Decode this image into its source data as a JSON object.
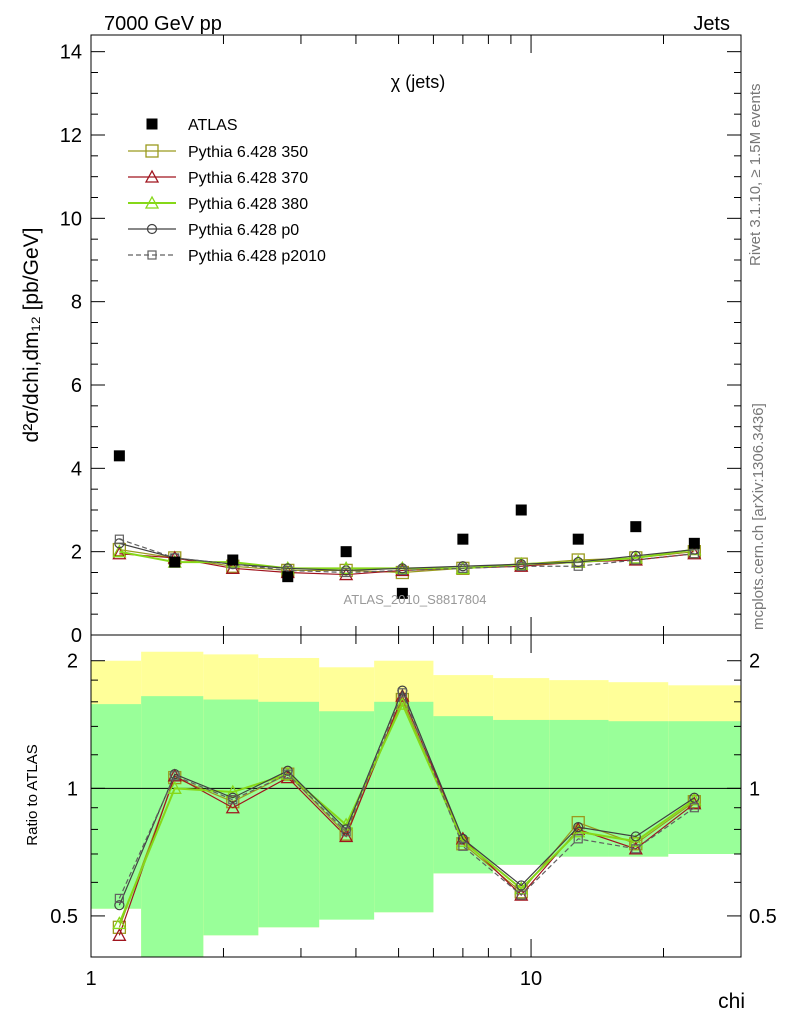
{
  "header": {
    "left": "7000 GeV pp",
    "right": "Jets"
  },
  "side_texts": {
    "rivet": "Rivet 3.1.10, ≥ 1.5M events",
    "mcplots": "mcplots.cern.ch [arXiv:1306.3436]"
  },
  "main_title": "χ (jets)",
  "watermark": "ATLAS_2010_S8817804",
  "colors": {
    "data": "#000000",
    "p350": "#9a9a1e",
    "p370": "#a0141e",
    "p380": "#86d818",
    "p0": "#404040",
    "p2010": "#606060",
    "band_green": "#99ff99",
    "band_yellow": "#ffff99"
  },
  "chart_data": [
    {
      "type": "scatter",
      "xscale": "log",
      "xlim": [
        1,
        30
      ],
      "ylim": [
        0,
        14.4
      ],
      "ylabel": "d²σ/dchi,dm₁₂ [pb/GeV]",
      "yticks": [
        "0",
        "2",
        "4",
        "6",
        "8",
        "10",
        "12",
        "14"
      ],
      "legend_position": "top-left",
      "x": [
        1.16,
        1.55,
        2.1,
        2.8,
        3.8,
        5.1,
        7.0,
        9.5,
        12.8,
        17.3,
        23.5
      ],
      "data_series": {
        "name": "ATLAS",
        "values": [
          4.3,
          1.75,
          1.8,
          1.4,
          2.0,
          1.0,
          2.3,
          3.0,
          2.3,
          2.6,
          2.2
        ]
      },
      "series": [
        {
          "name": "Pythia 6.428 350",
          "marker": "square",
          "values": [
            2.05,
            1.85,
            1.65,
            1.55,
            1.55,
            1.5,
            1.6,
            1.7,
            1.8,
            1.85,
            2.0
          ]
        },
        {
          "name": "Pythia 6.428 370",
          "marker": "triangle",
          "values": [
            1.95,
            1.85,
            1.6,
            1.5,
            1.45,
            1.55,
            1.6,
            1.65,
            1.75,
            1.8,
            1.95
          ]
        },
        {
          "name": "Pythia 6.428 380",
          "marker": "triangle",
          "values": [
            2.0,
            1.75,
            1.75,
            1.6,
            1.6,
            1.6,
            1.6,
            1.7,
            1.75,
            1.85,
            2.05
          ]
        },
        {
          "name": "Pythia 6.428 p0",
          "marker": "circle",
          "values": [
            2.2,
            1.85,
            1.7,
            1.6,
            1.55,
            1.6,
            1.65,
            1.7,
            1.75,
            1.9,
            2.05
          ]
        },
        {
          "name": "Pythia 6.428 p2010",
          "marker": "open-square",
          "dashed": true,
          "values": [
            2.3,
            1.85,
            1.7,
            1.55,
            1.5,
            1.55,
            1.6,
            1.65,
            1.65,
            1.8,
            1.95
          ]
        }
      ]
    },
    {
      "type": "scatter",
      "xscale": "log",
      "yscale": "log",
      "xlim": [
        1,
        30
      ],
      "ylim": [
        0.4,
        2.3
      ],
      "xlabel": "chi",
      "ylabel": "Ratio to ATLAS",
      "xticks": [
        "1",
        "10"
      ],
      "yticks": [
        "0.5",
        "1",
        "2"
      ],
      "bins": [
        1.0,
        1.3,
        1.8,
        2.4,
        3.3,
        4.4,
        6.0,
        8.2,
        11.0,
        15.0,
        20.5,
        30.0
      ],
      "band_green": [
        [
          0.52,
          1.58
        ],
        [
          0.38,
          1.65
        ],
        [
          0.45,
          1.62
        ],
        [
          0.47,
          1.6
        ],
        [
          0.49,
          1.52
        ],
        [
          0.51,
          1.6
        ],
        [
          0.63,
          1.48
        ],
        [
          0.66,
          1.45
        ],
        [
          0.69,
          1.45
        ],
        [
          0.69,
          1.44
        ],
        [
          0.7,
          1.44
        ]
      ],
      "band_yellow": [
        [
          0.52,
          2.0
        ],
        [
          0.38,
          2.1
        ],
        [
          0.45,
          2.07
        ],
        [
          0.47,
          2.03
        ],
        [
          0.6,
          1.93
        ],
        [
          0.51,
          2.0
        ],
        [
          0.63,
          1.85
        ],
        [
          0.66,
          1.82
        ],
        [
          0.69,
          1.8
        ],
        [
          0.69,
          1.78
        ],
        [
          0.7,
          1.75
        ]
      ],
      "reference": 1,
      "x": [
        1.16,
        1.55,
        2.1,
        2.8,
        3.8,
        5.1,
        7.0,
        9.5,
        12.8,
        17.3,
        23.5
      ],
      "series": [
        {
          "name": "Pythia 6.428 350",
          "values": [
            0.47,
            1.06,
            0.93,
            1.08,
            0.78,
            1.62,
            0.74,
            0.57,
            0.83,
            0.74,
            0.93
          ]
        },
        {
          "name": "Pythia 6.428 370",
          "values": [
            0.45,
            1.07,
            0.9,
            1.06,
            0.77,
            1.65,
            0.76,
            0.56,
            0.8,
            0.72,
            0.92
          ]
        },
        {
          "name": "Pythia 6.428 380",
          "values": [
            0.48,
            1.0,
            0.98,
            1.08,
            0.82,
            1.58,
            0.75,
            0.58,
            0.79,
            0.75,
            0.94
          ]
        },
        {
          "name": "Pythia 6.428 p0",
          "values": [
            0.53,
            1.08,
            0.95,
            1.1,
            0.8,
            1.7,
            0.76,
            0.59,
            0.81,
            0.77,
            0.95
          ]
        },
        {
          "name": "Pythia 6.428 p2010",
          "values": [
            0.55,
            1.07,
            0.94,
            1.08,
            0.79,
            1.68,
            0.73,
            0.56,
            0.76,
            0.72,
            0.9
          ]
        }
      ]
    }
  ]
}
